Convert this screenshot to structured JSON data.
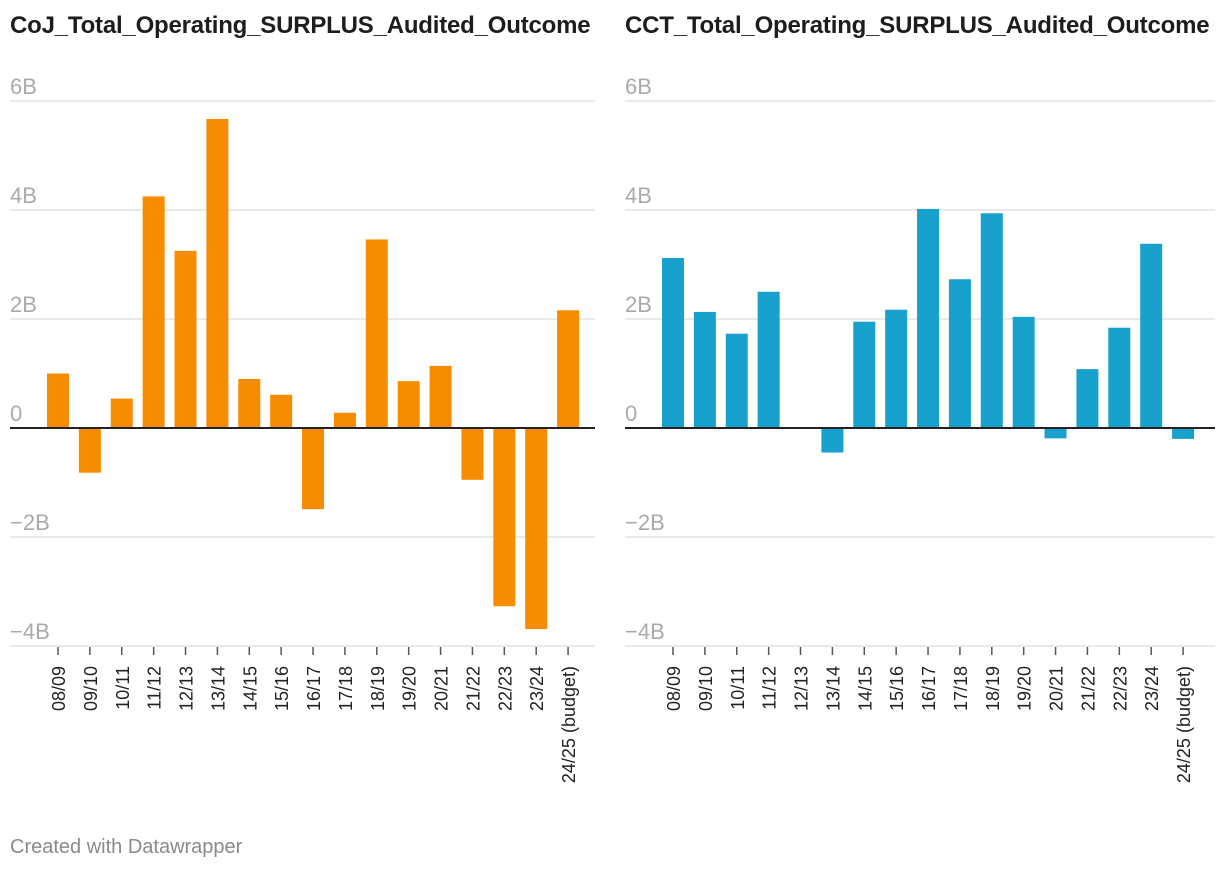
{
  "chart_data": [
    {
      "type": "bar",
      "title": "CoJ_Total_Operating_SURPLUS_Audited_Outcome",
      "color": "#f68c00",
      "categories": [
        "08/09",
        "09/10",
        "10/11",
        "11/12",
        "12/13",
        "13/14",
        "14/15",
        "15/16",
        "16/17",
        "17/18",
        "18/19",
        "19/20",
        "20/21",
        "21/22",
        "22/23",
        "23/24",
        "24/25 (budget)"
      ],
      "values": [
        1.0,
        -0.82,
        0.54,
        4.25,
        3.25,
        5.67,
        0.9,
        0.61,
        -1.49,
        0.28,
        3.46,
        0.86,
        1.14,
        -0.95,
        -3.27,
        -3.69,
        2.16
      ],
      "unit": "B",
      "ylim": [
        -4,
        6
      ],
      "yticks": [
        -4,
        -2,
        0,
        2,
        4,
        6
      ],
      "ytick_labels": [
        "−4B",
        "−2B",
        "0",
        "2B",
        "4B",
        "6B"
      ],
      "xlabel": "",
      "ylabel": ""
    },
    {
      "type": "bar",
      "title": "CCT_Total_Operating_SURPLUS_Audited_Outcome",
      "color": "#18a1cd",
      "categories": [
        "08/09",
        "09/10",
        "10/11",
        "11/12",
        "12/13",
        "13/14",
        "14/15",
        "15/16",
        "16/17",
        "17/18",
        "18/19",
        "19/20",
        "20/21",
        "21/22",
        "22/23",
        "23/24",
        "24/25 (budget)"
      ],
      "values": [
        3.12,
        2.13,
        1.73,
        2.5,
        0,
        -0.45,
        1.95,
        2.17,
        4.02,
        2.73,
        3.94,
        2.04,
        -0.19,
        1.08,
        1.84,
        3.38,
        -0.2
      ],
      "unit": "B",
      "ylim": [
        -4,
        6
      ],
      "yticks": [
        -4,
        -2,
        0,
        2,
        4,
        6
      ],
      "ytick_labels": [
        "−4B",
        "−2B",
        "0",
        "2B",
        "4B",
        "6B"
      ],
      "xlabel": "",
      "ylabel": ""
    }
  ],
  "footer": {
    "credit": "Created with Datawrapper"
  }
}
